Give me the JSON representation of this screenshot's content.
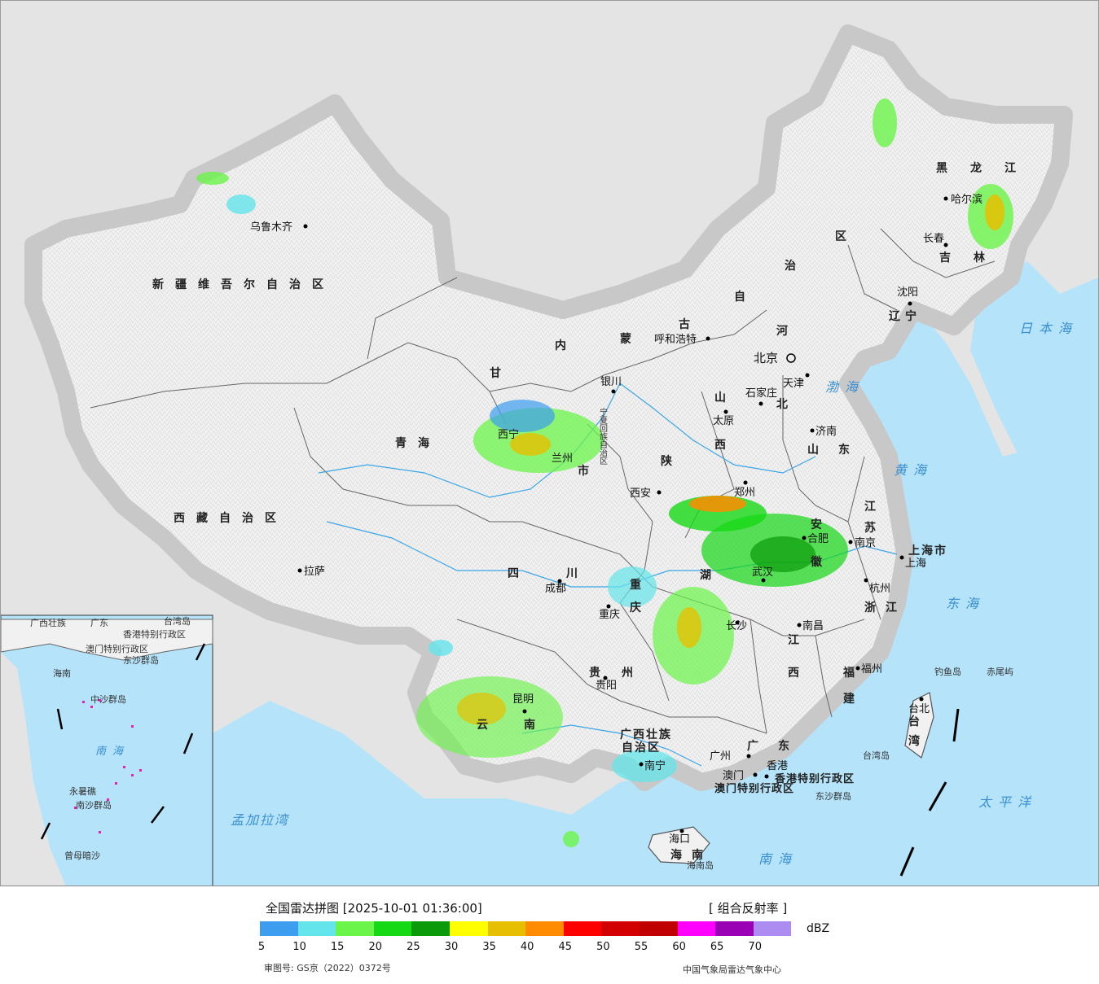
{
  "legend": {
    "title": "全国雷达拼图 [2025-10-01 01:36:00]",
    "product": "[ 组合反射率 ]",
    "unit": "dBZ",
    "ticks": [
      "5",
      "10",
      "15",
      "20",
      "25",
      "30",
      "35",
      "40",
      "45",
      "50",
      "55",
      "60",
      "65",
      "70"
    ],
    "colors": [
      "#3d9ef0",
      "#64e5eb",
      "#6bf54a",
      "#16d916",
      "#0a9a0a",
      "#ffff00",
      "#e6c000",
      "#ff8c00",
      "#ff0000",
      "#d20000",
      "#c00000",
      "#ff00ff",
      "#9a00b4",
      "#ac8cf0"
    ],
    "approval": "审图号: GS京（2022）0372号",
    "source": "中国气象局雷达气象中心"
  },
  "map": {
    "provinces": [
      "新疆维吾尔自治区",
      "西藏自治区",
      "青海",
      "甘",
      "内",
      "蒙",
      "古",
      "自",
      "治",
      "区",
      "黑",
      "龙",
      "江",
      "吉",
      "林",
      "辽",
      "宁",
      "河",
      "北",
      "山",
      "西",
      "陕",
      "四",
      "川",
      "云",
      "南",
      "贵",
      "州",
      "广西壮族",
      "自治区",
      "广",
      "东",
      "湖",
      "江",
      "西",
      "安",
      "徽",
      "江",
      "苏",
      "浙",
      "江",
      "福",
      "建",
      "山",
      "东",
      "台",
      "湾",
      "海",
      "南",
      "重",
      "庆",
      "市"
    ],
    "cities": [
      "乌鲁木齐",
      "拉萨",
      "银川",
      "呼和浩特",
      "北京",
      "天津",
      "石家庄",
      "太原",
      "济南",
      "沈阳",
      "长春",
      "哈尔滨",
      "西安",
      "郑州",
      "合肥",
      "南京",
      "上海",
      "杭州",
      "武汉",
      "南昌",
      "长沙",
      "福州",
      "台北",
      "成都",
      "重庆",
      "贵阳",
      "昆明",
      "南宁",
      "广州",
      "澳门",
      "香港",
      "海口",
      "西宁",
      "兰州"
    ],
    "regions": [
      "上海市",
      "香港特别行政区",
      "澳门特别行政区",
      "东沙群岛",
      "钓鱼岛",
      "赤尾屿",
      "台湾岛",
      "海南岛",
      "宁夏回族自治区"
    ],
    "seas": [
      "渤海",
      "黄海",
      "东海",
      "日本海",
      "太平洋",
      "南海",
      "孟加拉湾"
    ],
    "inset": [
      "广东",
      "广西壮族",
      "香港特别行政区",
      "澳门特别行政区",
      "海南",
      "东沙群岛",
      "中沙群岛",
      "南海",
      "永暑礁",
      "南沙群岛",
      "曾母暗沙",
      "台湾岛"
    ]
  }
}
